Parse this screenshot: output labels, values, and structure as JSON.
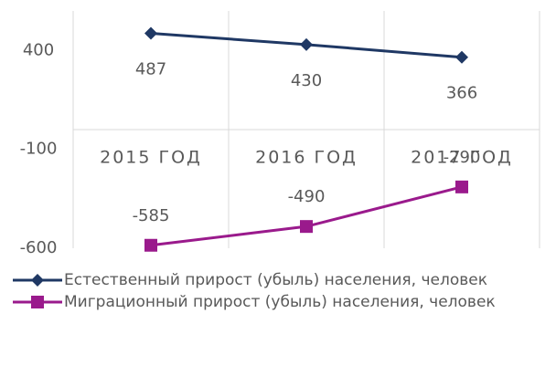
{
  "chart_data": {
    "type": "line",
    "categories": [
      "2015 ГОД",
      "2016 ГОД",
      "2017 ГОД"
    ],
    "series": [
      {
        "name": "Естественный прирост (убыль) населения, человек",
        "color": "#1f3864",
        "marker": "diamond",
        "values": [
          487,
          430,
          366
        ]
      },
      {
        "name": "Миграционный прирост (убыль) населения, человек",
        "color": "#9a1a8c",
        "marker": "square",
        "values": [
          -585,
          -490,
          -290
        ]
      }
    ],
    "ylim": [
      -600,
      600
    ],
    "yticks": [
      -600,
      -100,
      400
    ],
    "grid": true,
    "legend": "bottom"
  }
}
